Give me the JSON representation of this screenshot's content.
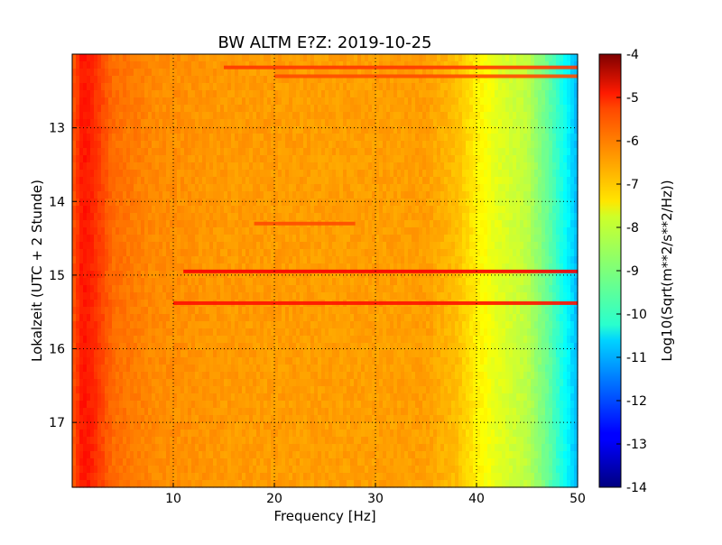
{
  "chart_data": {
    "type": "heatmap",
    "title": "BW ALTM E?Z: 2019-10-25",
    "xlabel": "Frequency [Hz]",
    "ylabel": "Lokalzeit (UTC + 2 Stunde)",
    "xlim": [
      0,
      50
    ],
    "ylim": [
      17.88,
      12.0
    ],
    "x_ticks": [
      {
        "value": 10,
        "label": "10"
      },
      {
        "value": 20,
        "label": "20"
      },
      {
        "value": 30,
        "label": "30"
      },
      {
        "value": 40,
        "label": "40"
      },
      {
        "value": 50,
        "label": "50"
      }
    ],
    "y_ticks": [
      {
        "value": 13,
        "label": "13"
      },
      {
        "value": 14,
        "label": "14"
      },
      {
        "value": 15,
        "label": "15"
      },
      {
        "value": 16,
        "label": "16"
      },
      {
        "value": 17,
        "label": "17"
      }
    ],
    "grid": true,
    "colorbar": {
      "label": "Log10(Sqrt(m**2/s**2/Hz))",
      "range": [
        -14,
        -4
      ],
      "colormap": "jet",
      "ticks": [
        "-4",
        "-5",
        "-6",
        "-7",
        "-8",
        "-9",
        "-10",
        "-11",
        "-12",
        "-13",
        "-14"
      ]
    },
    "base_spectrum": [
      {
        "f": 0,
        "v": -6.2
      },
      {
        "f": 1,
        "v": -5.4
      },
      {
        "f": 2,
        "v": -5.6
      },
      {
        "f": 4,
        "v": -6.3
      },
      {
        "f": 8,
        "v": -6.6
      },
      {
        "f": 15,
        "v": -6.75
      },
      {
        "f": 25,
        "v": -6.8
      },
      {
        "f": 35,
        "v": -6.8
      },
      {
        "f": 38,
        "v": -7.1
      },
      {
        "f": 40,
        "v": -7.6
      },
      {
        "f": 42,
        "v": -8.0
      },
      {
        "f": 45,
        "v": -8.4
      },
      {
        "f": 47,
        "v": -9.2
      },
      {
        "f": 49,
        "v": -10.3
      },
      {
        "f": 50,
        "v": -11.0
      }
    ],
    "bands": [
      {
        "time": 12.18,
        "f_start": 15,
        "f_end": 50,
        "value": -5.8
      },
      {
        "time": 12.3,
        "f_start": 20,
        "f_end": 50,
        "value": -6.0
      },
      {
        "time": 14.3,
        "f_start": 18,
        "f_end": 28,
        "value": -6.0
      },
      {
        "time": 14.95,
        "f_start": 11,
        "f_end": 50,
        "value": -5.2
      },
      {
        "time": 15.38,
        "f_start": 10,
        "f_end": 50,
        "value": -5.4
      }
    ]
  }
}
